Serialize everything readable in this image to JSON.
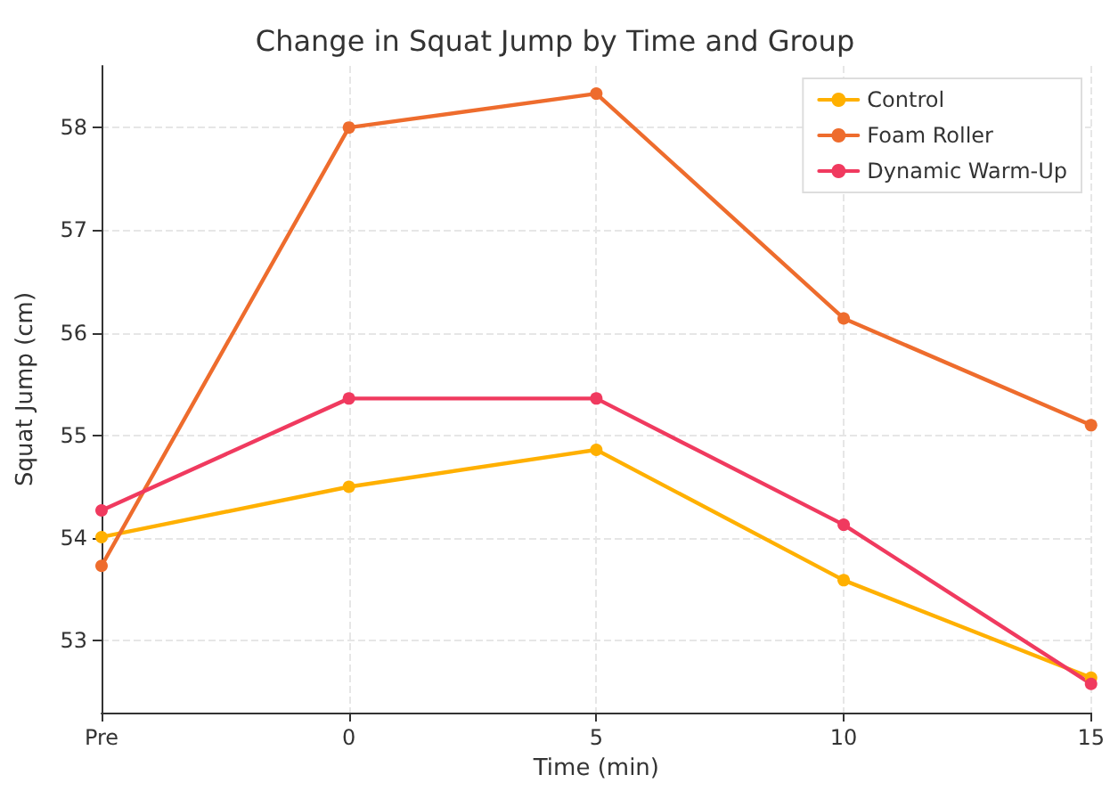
{
  "chart_data": {
    "type": "line",
    "title": "Change in Squat Jump by Time and Group",
    "xlabel": "Time (min)",
    "ylabel": "Squat Jump (cm)",
    "categories": [
      "Pre",
      "0",
      "5",
      "10",
      "15"
    ],
    "series": [
      {
        "name": "Control",
        "color": "#ffb000",
        "values": [
          54.01,
          54.5,
          54.86,
          53.59,
          52.64
        ]
      },
      {
        "name": "Foam Roller",
        "color": "#ee6c2d",
        "values": [
          53.73,
          58.0,
          58.33,
          56.14,
          55.1
        ]
      },
      {
        "name": "Dynamic Warm-Up",
        "color": "#f03a5f",
        "values": [
          54.27,
          55.36,
          55.36,
          54.13,
          52.58
        ]
      }
    ],
    "ylim": [
      52.3,
      58.6
    ],
    "yticks": [
      53,
      54,
      55,
      56,
      57,
      58
    ],
    "grid": true,
    "legend": "top right",
    "marker": "circle",
    "line_style": "solid"
  }
}
